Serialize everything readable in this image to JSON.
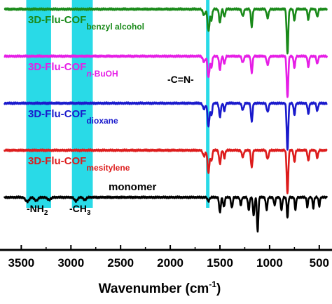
{
  "chart_data": {
    "type": "line",
    "title": "",
    "xlabel": "Wavenumber (cm",
    "xlabel_sup": "-1",
    "xlabel_close": ")",
    "ylabel": "",
    "xlim": [
      3700,
      400
    ],
    "x_reversed": true,
    "x_ticks": [
      "3500",
      "3000",
      "2500",
      "2000",
      "1500",
      "1000",
      "500"
    ],
    "x_tick_values": [
      3500,
      3000,
      2500,
      2000,
      1500,
      1000,
      500
    ],
    "y_axis_visible": false,
    "grid": false,
    "highlight_bands": [
      {
        "name": "nh2",
        "x_from": 3450,
        "x_to": 3200,
        "color": "#1ed8e6",
        "label": "-NH",
        "label_sub": "2"
      },
      {
        "name": "ch3",
        "x_from": 2990,
        "x_to": 2780,
        "color": "#1ed8e6",
        "label": "-CH",
        "label_sub": "3"
      },
      {
        "name": "cn",
        "x_from": 1640,
        "x_to": 1605,
        "color": "#1ed8e6",
        "label": "-C=N-",
        "label_sub": ""
      }
    ],
    "series": [
      {
        "name": "3D-Flu-COF benzyl alcohol",
        "label_main": "3D-Flu-COF",
        "label_sub": "benzyl alcohol",
        "color": "#1a8a1a",
        "offset": 4,
        "baseline": 0,
        "peaks": [
          [
            1660,
            1.2,
            12
          ],
          [
            1615,
            4.6,
            10
          ],
          [
            1585,
            2.2,
            8
          ],
          [
            1500,
            2.8,
            9
          ],
          [
            1455,
            1.6,
            8
          ],
          [
            1270,
            1.4,
            10
          ],
          [
            1180,
            3.6,
            8
          ],
          [
            1020,
            1.8,
            10
          ],
          [
            820,
            9.2,
            8
          ],
          [
            750,
            2.4,
            8
          ],
          [
            610,
            2.2,
            8
          ],
          [
            520,
            1.6,
            8
          ]
        ]
      },
      {
        "name": "3D-Flu-COF n-BuOH",
        "label_main": "3D-Flu-COF",
        "label_sub": "n-BuOH",
        "color": "#e61ee6",
        "offset": 3,
        "baseline": 0,
        "peaks": [
          [
            1660,
            1.2,
            12
          ],
          [
            1615,
            4.4,
            10
          ],
          [
            1585,
            2.2,
            8
          ],
          [
            1500,
            2.8,
            9
          ],
          [
            1455,
            1.6,
            8
          ],
          [
            1270,
            1.3,
            10
          ],
          [
            1180,
            3.4,
            8
          ],
          [
            1020,
            1.8,
            10
          ],
          [
            820,
            8.6,
            8
          ],
          [
            750,
            2.4,
            8
          ],
          [
            610,
            2.2,
            8
          ],
          [
            520,
            1.6,
            8
          ]
        ]
      },
      {
        "name": "3D-Flu-COF dioxane",
        "label_main": "3D-Flu-COF",
        "label_sub": "dioxane",
        "color": "#1a1acc",
        "offset": 2,
        "baseline": 0,
        "peaks": [
          [
            1660,
            1.2,
            12
          ],
          [
            1615,
            4.8,
            10
          ],
          [
            1585,
            2.4,
            8
          ],
          [
            1500,
            2.8,
            9
          ],
          [
            1455,
            1.6,
            8
          ],
          [
            1270,
            1.4,
            10
          ],
          [
            1180,
            3.8,
            8
          ],
          [
            1020,
            1.8,
            10
          ],
          [
            820,
            9.8,
            8
          ],
          [
            750,
            2.4,
            8
          ],
          [
            610,
            2.2,
            8
          ],
          [
            520,
            1.6,
            8
          ]
        ]
      },
      {
        "name": "3D-Flu-COF mesitylene",
        "label_main": "3D-Flu-COF",
        "label_sub": "mesitylene",
        "color": "#dd1c1c",
        "offset": 1,
        "baseline": 0,
        "peaks": [
          [
            1660,
            1.2,
            12
          ],
          [
            1615,
            4.6,
            10
          ],
          [
            1585,
            2.2,
            8
          ],
          [
            1500,
            2.8,
            9
          ],
          [
            1455,
            1.6,
            8
          ],
          [
            1270,
            1.4,
            10
          ],
          [
            1180,
            3.6,
            8
          ],
          [
            1020,
            1.8,
            10
          ],
          [
            820,
            9.0,
            8
          ],
          [
            750,
            2.4,
            8
          ],
          [
            610,
            2.2,
            8
          ],
          [
            520,
            1.6,
            8
          ]
        ]
      },
      {
        "name": "monomer",
        "label_main": "monomer",
        "label_sub": "",
        "color": "#000000",
        "offset": 0,
        "baseline": 0,
        "peaks": [
          [
            3440,
            0.9,
            18
          ],
          [
            3350,
            0.7,
            18
          ],
          [
            3220,
            0.5,
            18
          ],
          [
            2950,
            0.8,
            15
          ],
          [
            2860,
            0.5,
            15
          ],
          [
            1615,
            0.8,
            10
          ],
          [
            1500,
            3.2,
            8
          ],
          [
            1460,
            2.0,
            8
          ],
          [
            1380,
            2.2,
            8
          ],
          [
            1290,
            1.6,
            8
          ],
          [
            1210,
            2.6,
            8
          ],
          [
            1160,
            3.8,
            8
          ],
          [
            1120,
            7.2,
            7
          ],
          [
            1030,
            2.6,
            8
          ],
          [
            950,
            1.6,
            8
          ],
          [
            880,
            2.6,
            8
          ],
          [
            820,
            4.2,
            7
          ],
          [
            740,
            2.6,
            7
          ],
          [
            620,
            2.0,
            7
          ],
          [
            560,
            2.2,
            7
          ],
          [
            500,
            1.8,
            7
          ]
        ]
      }
    ]
  }
}
